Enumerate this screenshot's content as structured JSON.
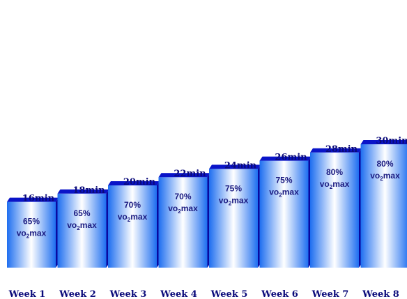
{
  "chart_data": {
    "type": "bar",
    "categories": [
      "Week 1",
      "Week 2",
      "Week 3",
      "Week 4",
      "Week 5",
      "Week 6",
      "Week 7",
      "Week 8"
    ],
    "values": [
      16,
      18,
      20,
      22,
      24,
      26,
      28,
      30
    ],
    "value_labels": [
      "16min",
      "18min",
      "20min",
      "22min",
      "24min",
      "26min",
      "28min",
      "30min"
    ],
    "intensity_percent": [
      "65%",
      "65%",
      "70%",
      "70%",
      "75%",
      "75%",
      "80%",
      "80%"
    ],
    "intensity_unit_main": "vo",
    "intensity_unit_sub": "2",
    "intensity_unit_tail": "max",
    "ylim": [
      0,
      30
    ],
    "grid": false,
    "legend": "none",
    "colors": {
      "bar_edge": "#1e6ef0",
      "bar_center": "#ffffff",
      "bar_top": "#0a14c8",
      "bar_side": "#0a0aa0",
      "text": "#0a0a7a"
    }
  }
}
